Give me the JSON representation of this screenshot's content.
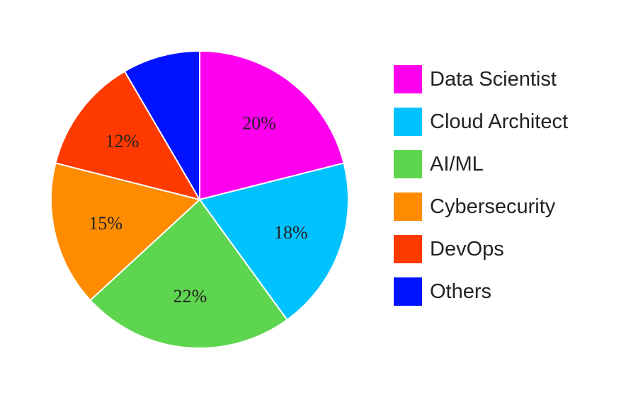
{
  "chart_data": {
    "type": "pie",
    "title": "",
    "categories": [
      "Data Scientist",
      "Cloud Architect",
      "AI/ML",
      "Cybersecurity",
      "DevOps",
      "Others"
    ],
    "values": [
      20,
      18,
      22,
      15,
      12,
      8
    ],
    "value_labels": [
      "20%",
      "18%",
      "22%",
      "15%",
      "12%",
      ""
    ],
    "colors": [
      "#ff00ee",
      "#00c2ff",
      "#5ed54f",
      "#ff8c00",
      "#ff3a00",
      "#0012ff"
    ],
    "legend_position": "right"
  }
}
